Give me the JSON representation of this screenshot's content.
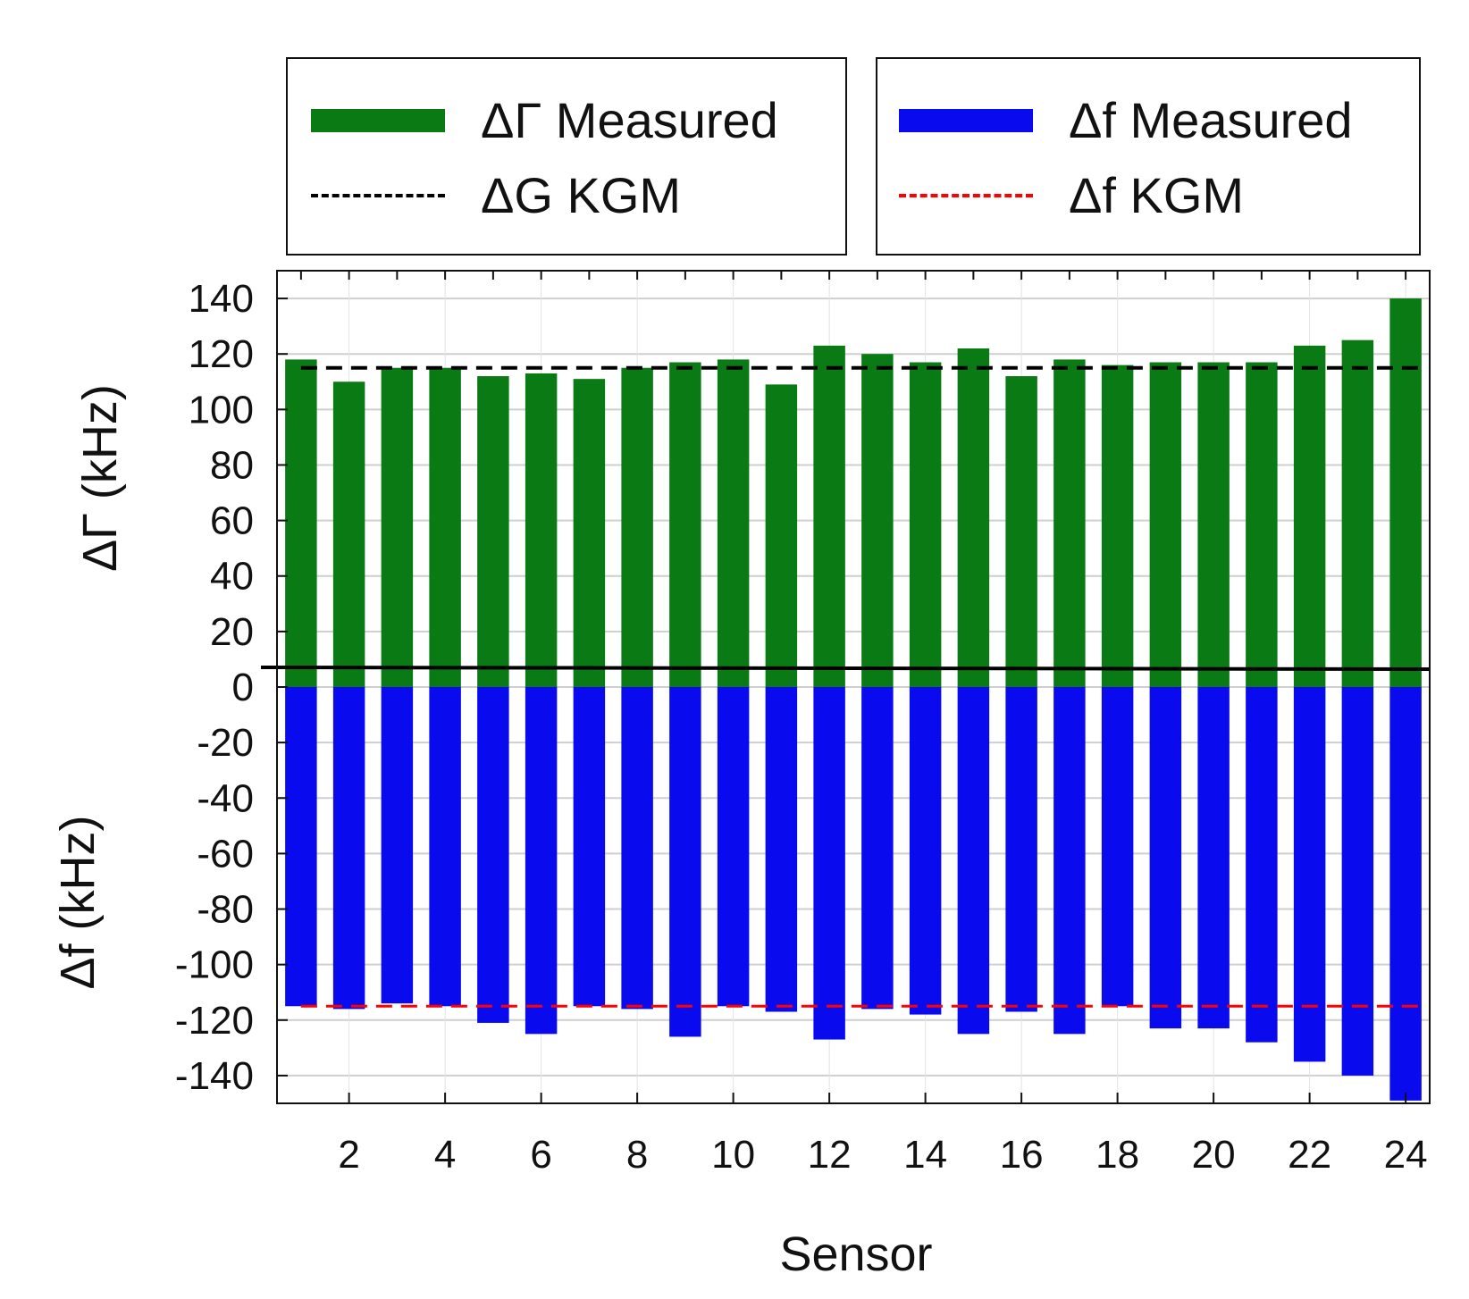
{
  "colors": {
    "gamma_bar": "#0a7a14",
    "f_bar": "#0a0aef",
    "gamma_kgm": "#000000",
    "f_kgm": "#ff0000",
    "grid": "#cfcfcf"
  },
  "legend": {
    "left": {
      "measured_label": "ΔΓ Measured",
      "kgm_label": "ΔG KGM"
    },
    "right": {
      "measured_label": "Δf Measured",
      "kgm_label": "Δf KGM"
    }
  },
  "chart_data": {
    "type": "bar",
    "xlabel": "Sensor",
    "ylabel_top": "ΔΓ (kHz)",
    "ylabel_bottom": "Δf (kHz)",
    "xlim": [
      0.5,
      24.5
    ],
    "ylim": [
      -150,
      150
    ],
    "x_ticks": [
      2,
      4,
      6,
      8,
      10,
      12,
      14,
      16,
      18,
      20,
      22,
      24
    ],
    "y_ticks": [
      140,
      120,
      100,
      80,
      60,
      40,
      20,
      0,
      -20,
      -40,
      -60,
      -80,
      -100,
      -120,
      -140
    ],
    "categories": [
      1,
      2,
      3,
      4,
      5,
      6,
      7,
      8,
      9,
      10,
      11,
      12,
      13,
      14,
      15,
      16,
      17,
      18,
      19,
      20,
      21,
      22,
      23,
      24
    ],
    "series": [
      {
        "name": "ΔΓ Measured",
        "values": [
          118,
          110,
          115,
          115,
          112,
          113,
          111,
          115,
          117,
          118,
          109,
          123,
          120,
          117,
          122,
          112,
          118,
          116,
          117,
          117,
          117,
          123,
          125,
          140
        ]
      },
      {
        "name": "Δf Measured",
        "values": [
          -115,
          -116,
          -114,
          -115,
          -121,
          -125,
          -115,
          -116,
          -126,
          -115,
          -117,
          -127,
          -116,
          -118,
          -125,
          -117,
          -125,
          -115,
          -123,
          -123,
          -128,
          -135,
          -140,
          -149
        ]
      }
    ],
    "reference_lines": [
      {
        "name": "ΔG KGM",
        "value": 115,
        "x_range": [
          1,
          24
        ]
      },
      {
        "name": "Δf KGM",
        "value": -115,
        "x_range": [
          1,
          24
        ]
      }
    ]
  }
}
